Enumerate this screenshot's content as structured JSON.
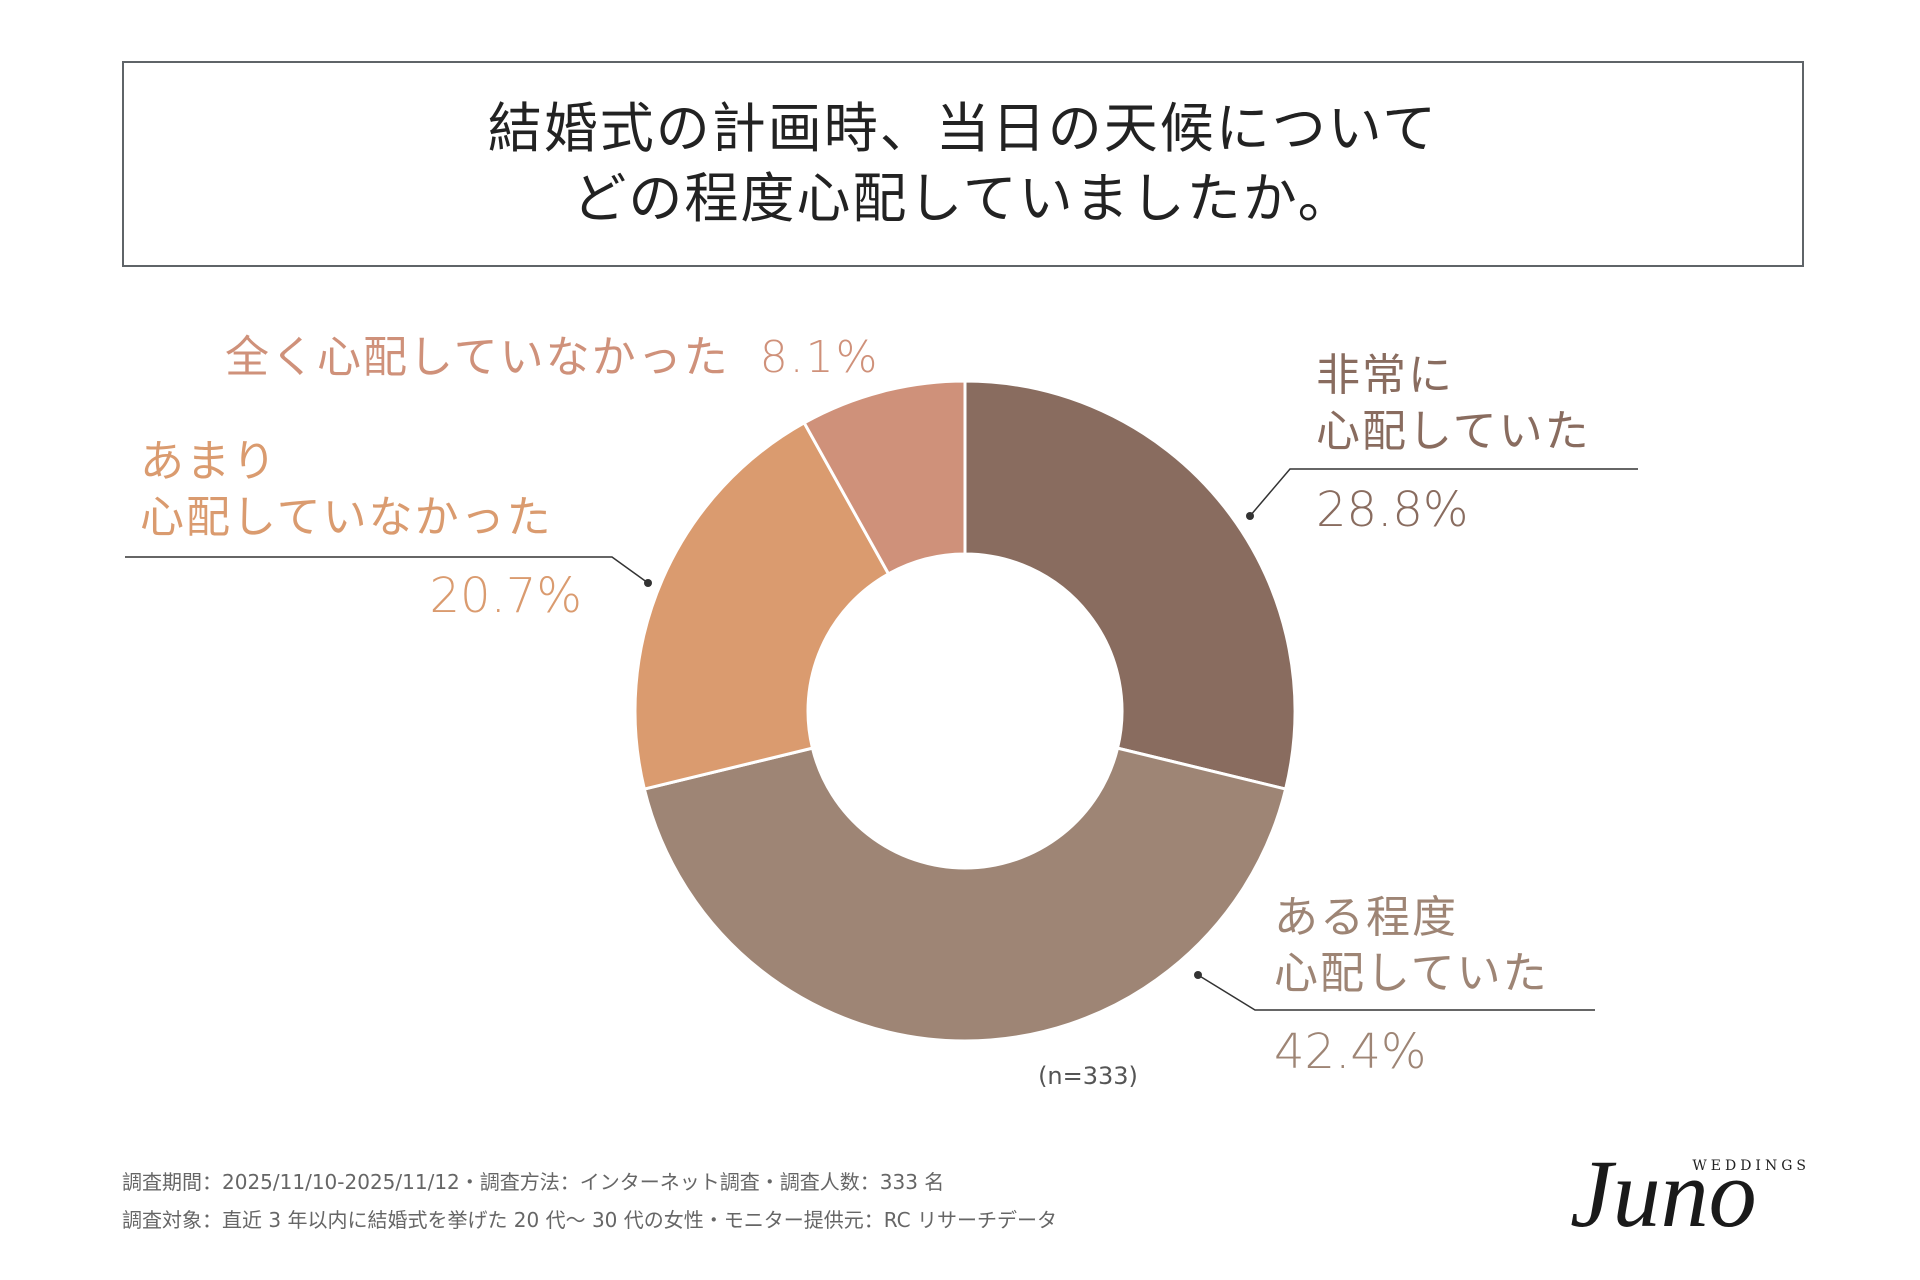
{
  "header": {
    "title_line1": "結婚式の計画時、当日の天候について",
    "title_line2": "どの程度心配していましたか。"
  },
  "chart_data": {
    "type": "pie",
    "variant": "donut",
    "title": "結婚式の計画時、当日の天候について どの程度心配していましたか。",
    "sample": "(n=333)",
    "slices": [
      {
        "key": "very",
        "label_lines": [
          "非常に",
          "心配していた"
        ],
        "value": 28.8,
        "value_label": "28.8%",
        "color": "#896c5f"
      },
      {
        "key": "somewhat",
        "label_lines": [
          "ある程度",
          "心配していた"
        ],
        "value": 42.4,
        "value_label": "42.4%",
        "color": "#9e8575"
      },
      {
        "key": "not-much",
        "label_lines": [
          "あまり",
          "心配していなかった"
        ],
        "value": 20.7,
        "value_label": "20.7%",
        "color": "#da9b6f"
      },
      {
        "key": "not-at-all",
        "label_lines": [
          "全く心配していなかった"
        ],
        "value": 8.1,
        "value_label": "8.1%",
        "color": "#cf917a"
      }
    ]
  },
  "footer": {
    "line1": "調査期間：2025/11/10-2025/11/12・調査方法：インターネット調査・調査人数：333 名",
    "line2": "調査対象：直近 3 年以内に結婚式を挙げた 20 代〜 30 代の女性・モニター提供元：RC リサーチデータ"
  },
  "brand": {
    "logo_main": "Juno",
    "logo_sub": "WEDDINGS"
  }
}
